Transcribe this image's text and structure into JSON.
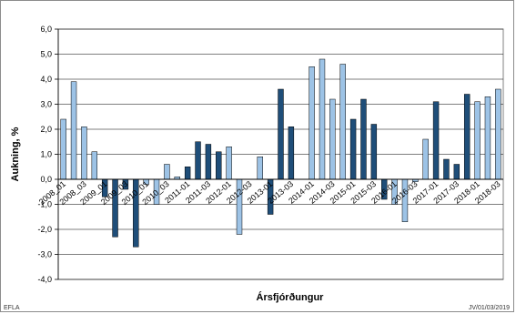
{
  "colors": {
    "light": "#9dc3e6",
    "dark": "#1f4e79",
    "grid": "#000000",
    "plot_border": "#808080",
    "bar_outline": "#000000"
  },
  "footer": {
    "left": "EFLA",
    "right": "JV/01/03/2019"
  },
  "chart_data": {
    "type": "bar",
    "title": "",
    "xlabel": "Ársfjórðungur",
    "ylabel": "Aukning, %",
    "ylim": [
      -4.0,
      6.0
    ],
    "yticks": [
      "6,0",
      "5,0",
      "4,0",
      "3,0",
      "2,0",
      "1,0",
      "0,0",
      "-1,0",
      "-2,0",
      "-3,0",
      "-4,0"
    ],
    "ytick_values": [
      6,
      5,
      4,
      3,
      2,
      1,
      0,
      -1,
      -2,
      -3,
      -4
    ],
    "grid": "horizontal",
    "xtick_labels": [
      "2008_01",
      "2008_03",
      "2009_01",
      "2009_03",
      "2010_01",
      "2010_03",
      "2011-01",
      "2011-03",
      "2012-01",
      "2012-03",
      "2013-01",
      "2013-03",
      "2014-01",
      "2014-03",
      "2015-01",
      "2015-03",
      "2016-01",
      "2016-03",
      "2017-01",
      "2017-03",
      "2018-01",
      "2018-03"
    ],
    "series": [
      {
        "values": [
          2.4,
          3.9,
          2.1,
          1.1,
          -0.7,
          -2.3,
          -0.4,
          -2.7,
          -0.2,
          -1.0,
          0.6,
          0.1,
          0.5,
          1.5,
          1.4,
          1.1,
          1.3,
          -2.2,
          null,
          0.9,
          -1.4,
          3.6,
          2.1,
          null,
          4.5,
          4.8,
          3.2,
          4.6,
          2.4,
          3.2,
          2.2,
          -0.8,
          -1.0,
          -1.7,
          -0.1,
          1.6,
          3.1,
          0.8,
          0.6,
          3.4,
          3.1,
          3.3,
          3.6
        ],
        "tones": [
          "light",
          "light",
          "light",
          "light",
          "dark",
          "dark",
          "dark",
          "dark",
          "light",
          "light",
          "light",
          "light",
          "dark",
          "dark",
          "dark",
          "dark",
          "light",
          "light",
          "light",
          "light",
          "dark",
          "dark",
          "dark",
          "dark",
          "light",
          "light",
          "light",
          "light",
          "dark",
          "dark",
          "dark",
          "dark",
          "light",
          "light",
          "light",
          "light",
          "dark",
          "dark",
          "dark",
          "dark",
          "light",
          "light",
          "light"
        ]
      }
    ]
  }
}
